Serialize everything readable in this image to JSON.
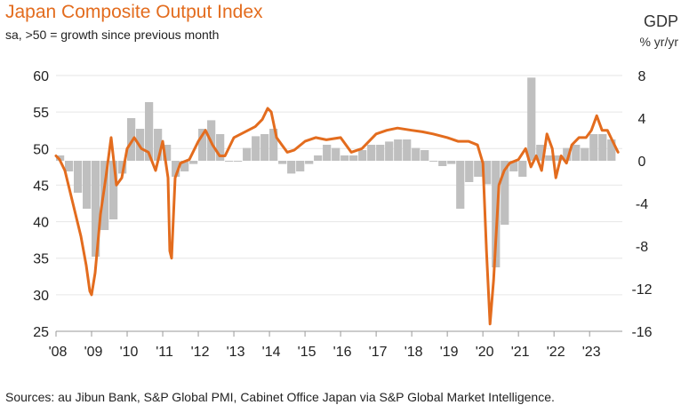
{
  "header": {
    "title": "Japan Composite Output Index",
    "subtitle": "sa, >50 = growth since previous month",
    "right_title": "GDP",
    "right_unit": "% yr/yr"
  },
  "footer": {
    "source": "Sources: au Jibun Bank, S&P Global PMI, Cabinet Office Japan via S&P Global Market Intelligence."
  },
  "colors": {
    "pmi_line": "#e36c1e",
    "gdp_bar": "#bfbfbf",
    "grid": "#e6e6e6",
    "axis_text": "#222222"
  },
  "chart_data": {
    "type": "line",
    "x_range": [
      2008.0,
      2023.92
    ],
    "x_tick_labels": [
      "'08",
      "'09",
      "'10",
      "'11",
      "'12",
      "'13",
      "'14",
      "'15",
      "'16",
      "'17",
      "'18",
      "'19",
      "'20",
      "'21",
      "'22",
      "'23"
    ],
    "x_tick_values": [
      2008,
      2009,
      2010,
      2011,
      2012,
      2013,
      2014,
      2015,
      2016,
      2017,
      2018,
      2019,
      2020,
      2021,
      2022,
      2023
    ],
    "left_axis": {
      "range": [
        25,
        60
      ],
      "ticks": [
        25,
        30,
        35,
        40,
        45,
        50,
        55,
        60
      ]
    },
    "right_axis": {
      "range": [
        -16,
        8
      ],
      "ticks": [
        -16,
        -12,
        -8,
        -4,
        0,
        4,
        8
      ]
    },
    "grid": "horizontal",
    "series": [
      {
        "axis": "left",
        "type": "line",
        "x": [
          2008.0,
          2008.1,
          2008.25,
          2008.4,
          2008.55,
          2008.7,
          2008.85,
          2008.95,
          2009.0,
          2009.1,
          2009.25,
          2009.4,
          2009.55,
          2009.7,
          2009.85,
          2010.0,
          2010.2,
          2010.4,
          2010.6,
          2010.8,
          2011.0,
          2011.15,
          2011.2,
          2011.25,
          2011.35,
          2011.5,
          2011.75,
          2012.0,
          2012.2,
          2012.4,
          2012.6,
          2012.75,
          2013.0,
          2013.2,
          2013.4,
          2013.6,
          2013.8,
          2013.95,
          2014.05,
          2014.2,
          2014.35,
          2014.5,
          2014.7,
          2015.0,
          2015.3,
          2015.6,
          2016.0,
          2016.3,
          2016.6,
          2017.0,
          2017.3,
          2017.6,
          2018.0,
          2018.3,
          2018.6,
          2019.0,
          2019.3,
          2019.6,
          2019.85,
          2020.0,
          2020.1,
          2020.2,
          2020.3,
          2020.45,
          2020.6,
          2020.75,
          2021.0,
          2021.2,
          2021.35,
          2021.5,
          2021.65,
          2021.8,
          2021.95,
          2022.05,
          2022.2,
          2022.35,
          2022.5,
          2022.7,
          2022.9,
          2023.05,
          2023.2,
          2023.35,
          2023.5,
          2023.65,
          2023.8
        ],
        "values": [
          49,
          48.5,
          47,
          44,
          41,
          38,
          34,
          30.5,
          30,
          33,
          41,
          46,
          51.5,
          45,
          46,
          50,
          51.5,
          50,
          49.5,
          47,
          51,
          46,
          36,
          35,
          46,
          48,
          48.5,
          51,
          52.5,
          50.5,
          49,
          49,
          51.5,
          52,
          52.5,
          53,
          54,
          55.5,
          55,
          51.5,
          50.5,
          49.5,
          49.8,
          51,
          51.5,
          51.2,
          51.5,
          49.5,
          50,
          52,
          52.5,
          52.8,
          52.5,
          52.3,
          52,
          51.5,
          51,
          51,
          50.5,
          48,
          36,
          26,
          32,
          45,
          47,
          48,
          48.5,
          50,
          47.5,
          49,
          47,
          52,
          50,
          46,
          49,
          48,
          50.5,
          51.5,
          51.5,
          52.5,
          54.5,
          52.5,
          52.5,
          51,
          49.5
        ]
      },
      {
        "axis": "right",
        "type": "bar",
        "x": [
          2008.0,
          2008.25,
          2008.5,
          2008.75,
          2009.0,
          2009.25,
          2009.5,
          2009.75,
          2010.0,
          2010.25,
          2010.5,
          2010.75,
          2011.0,
          2011.25,
          2011.5,
          2011.75,
          2012.0,
          2012.25,
          2012.5,
          2012.75,
          2013.0,
          2013.25,
          2013.5,
          2013.75,
          2014.0,
          2014.25,
          2014.5,
          2014.75,
          2015.0,
          2015.25,
          2015.5,
          2015.75,
          2016.0,
          2016.25,
          2016.5,
          2016.75,
          2017.0,
          2017.25,
          2017.5,
          2017.75,
          2018.0,
          2018.25,
          2018.5,
          2018.75,
          2019.0,
          2019.25,
          2019.5,
          2019.75,
          2020.0,
          2020.25,
          2020.5,
          2020.75,
          2021.0,
          2021.25,
          2021.5,
          2021.75,
          2022.0,
          2022.25,
          2022.5,
          2022.75,
          2023.0,
          2023.25,
          2023.5
        ],
        "values": [
          0.5,
          -1,
          -3,
          -4.5,
          -9,
          -6.5,
          -5.5,
          -1.2,
          4,
          3,
          5.5,
          3,
          1.5,
          -1.5,
          -1,
          -0.3,
          3,
          3.8,
          2.5,
          0,
          0,
          1.2,
          2.3,
          2.5,
          3,
          -0.3,
          -1.2,
          -1,
          -0.3,
          0.5,
          1.5,
          1.2,
          0.5,
          0.5,
          1,
          1.5,
          1.5,
          1.8,
          2,
          2,
          1.2,
          1,
          0,
          -0.5,
          -0.3,
          -4.5,
          -2,
          -1.5,
          -2.2,
          -10,
          -6,
          -1,
          -1.5,
          7.8,
          1.5,
          0.5,
          0.5,
          1.2,
          1.5,
          1.2,
          2.5,
          2.5,
          2
        ]
      }
    ]
  }
}
